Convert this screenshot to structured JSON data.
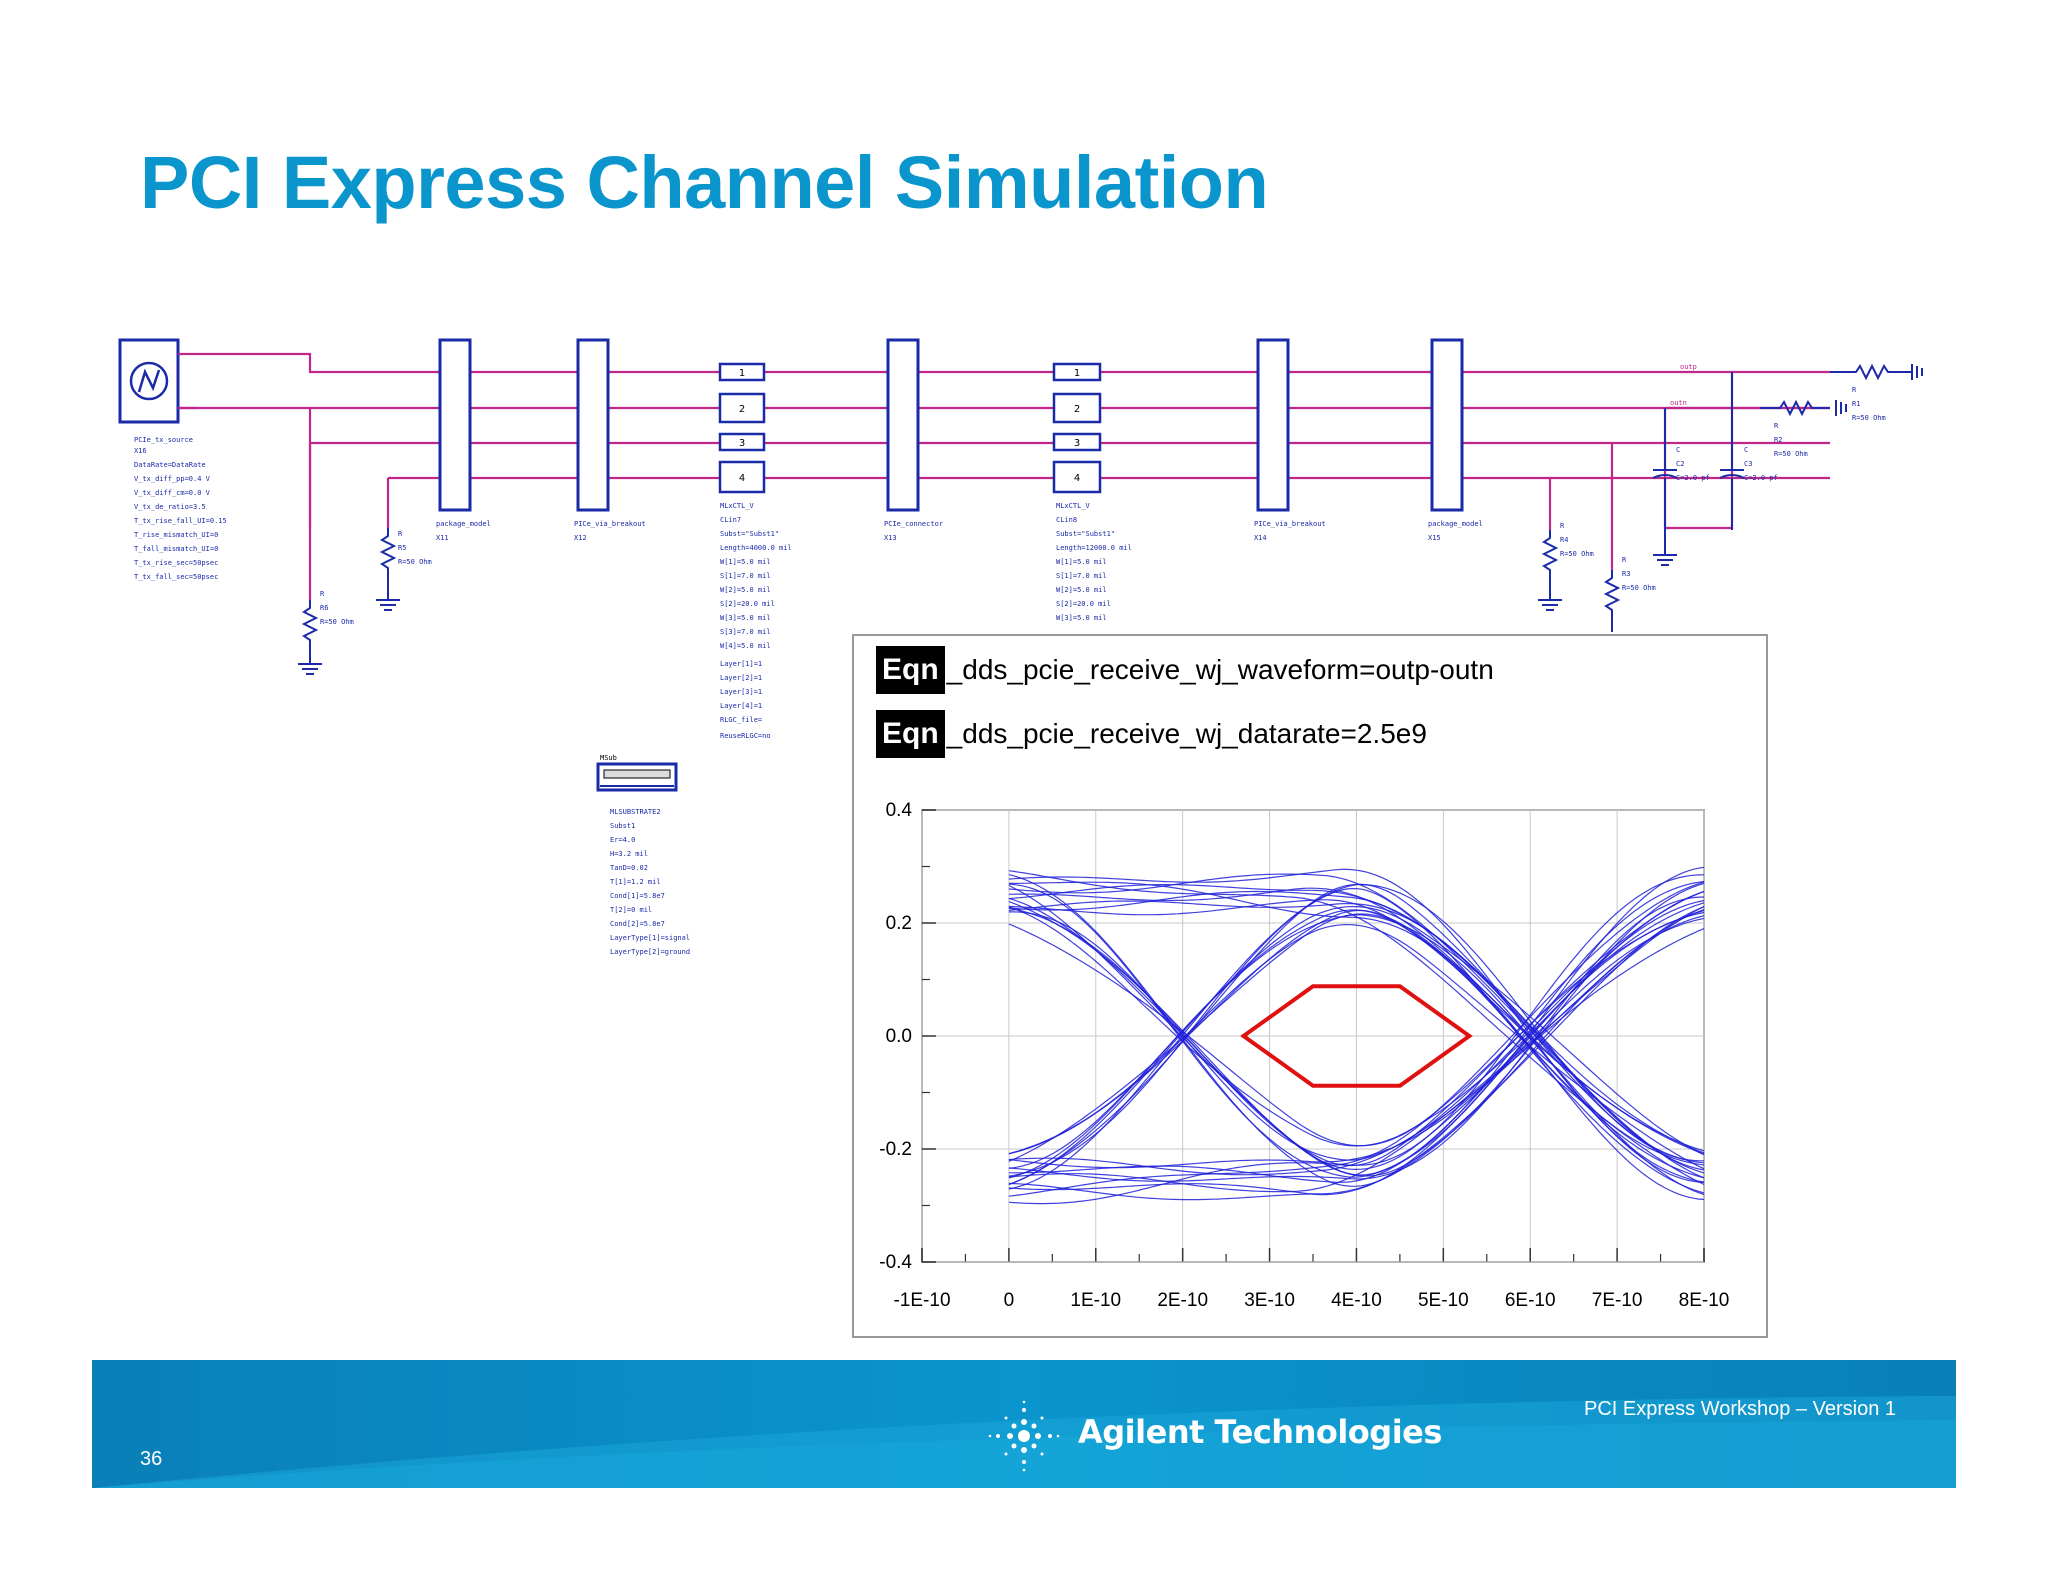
{
  "title": "PCI Express Channel Simulation",
  "footer": {
    "workshop": "PCI Express Workshop – Version 1",
    "page_number": "36",
    "logo": "Agilent Technologies"
  },
  "colors": {
    "title": "#0a96cc",
    "schematic_wire": "#c0278a",
    "schematic_component": "#1a2aa8",
    "eye_trace": "#1f1fd8",
    "mask": "#e01010",
    "footer": "#0a8fc8"
  },
  "schematic": {
    "source": {
      "name": "PCIe_tx_source",
      "id": "X16",
      "params": [
        "DataRate=DataRate",
        "V_tx_diff_pp=0.4 V",
        "V_tx_diff_cm=0.0 V",
        "V_tx_de_ratio=3.5",
        "T_tx_rise_fall_UI=0.15",
        "T_rise_mismatch_UI=0",
        "T_fall_mismatch_UI=0",
        "T_tx_rise_sec=50psec",
        "T_tx_fall_sec=50psec"
      ]
    },
    "blocks": [
      {
        "name": "package_model",
        "id": "X11"
      },
      {
        "name": "PICe_via_breakout",
        "id": "X12"
      },
      {
        "name": "PCIe_connector",
        "id": "X13"
      },
      {
        "name": "PICe_via_breakout",
        "id": "X14"
      },
      {
        "name": "package_model",
        "id": "X15"
      }
    ],
    "line1": {
      "name": "MLxCTL_V",
      "id": "CLin7",
      "ports": [
        "1",
        "2",
        "3",
        "4"
      ],
      "params": [
        "Subst=\"Subst1\"",
        "Length=4000.0 mil",
        "W[1]=5.0 mil",
        "S[1]=7.0 mil",
        "W[2]=5.0 mil",
        "S[2]=20.0 mil",
        "W[3]=5.0 mil",
        "S[3]=7.0 mil",
        "W[4]=5.0 mil",
        "Layer[1]=1",
        "Layer[2]=1",
        "Layer[3]=1",
        "Layer[4]=1",
        "RLGC_file=",
        "ReuseRLGC=no"
      ]
    },
    "line2": {
      "name": "MLxCTL_V",
      "id": "CLin8",
      "ports": [
        "1",
        "2",
        "3",
        "4"
      ],
      "params": [
        "Subst=\"Subst1\"",
        "Length=12000.0 mil",
        "W[1]=5.0 mil",
        "S[1]=7.0 mil",
        "W[2]=5.0 mil",
        "S[2]=20.0 mil",
        "W[3]=5.0 mil"
      ]
    },
    "resistors": [
      {
        "name": "R",
        "id": "R6",
        "value": "R=50 Ohm"
      },
      {
        "name": "R",
        "id": "R5",
        "value": "R=50 Ohm"
      },
      {
        "name": "R",
        "id": "R4",
        "value": "R=50 Ohm"
      },
      {
        "name": "R",
        "id": "R3",
        "value": "R=50 Ohm"
      },
      {
        "name": "R",
        "id": "R2",
        "value": "R=50 Ohm"
      },
      {
        "name": "R",
        "id": "R1",
        "value": "R=50 Ohm"
      }
    ],
    "capacitors": [
      {
        "name": "C",
        "id": "C2",
        "value": "C=2.0 pf"
      },
      {
        "name": "C",
        "id": "C3",
        "value": "C=2.0 pf"
      }
    ],
    "nets": [
      "outp",
      "outn"
    ],
    "substrate": {
      "header": "MSub",
      "name": "MLSUBSTRATE2",
      "params": [
        "Subst1",
        "Er=4.0",
        "H=3.2 mil",
        "TanD=0.02",
        "T[1]=1.2 mil",
        "Cond[1]=5.8e7",
        "T[2]=0 mil",
        "Cond[2]=5.8e7",
        "LayerType[1]=signal",
        "LayerType[2]=ground"
      ]
    }
  },
  "equations": [
    {
      "badge": "Eqn",
      "text": "_dds_pcie_receive_wj_waveform=outp-outn"
    },
    {
      "badge": "Eqn",
      "text": "_dds_pcie_receive_wj_datarate=2.5e9"
    }
  ],
  "chart_data": {
    "type": "line",
    "title": "",
    "xlabel": "",
    "ylabel": "",
    "xlim": [
      -1e-10,
      8e-10
    ],
    "ylim": [
      -0.4,
      0.4
    ],
    "x_ticks": [
      "-1E-10",
      "0",
      "1E-10",
      "2E-10",
      "3E-10",
      "4E-10",
      "5E-10",
      "6E-10",
      "7E-10",
      "8E-10"
    ],
    "y_ticks": [
      "0.4",
      "0.2",
      "0.0",
      "-0.2",
      "-0.4"
    ],
    "grid": true,
    "eye": {
      "unit_interval": 4e-10,
      "crossings": [
        2e-10,
        6e-10
      ],
      "high_levels": [
        0.22,
        0.225,
        0.232,
        0.24,
        0.25,
        0.26,
        0.27,
        0.28,
        0.29
      ],
      "low_levels": [
        -0.22,
        -0.225,
        -0.232,
        -0.24,
        -0.25,
        -0.26,
        -0.27,
        -0.28,
        -0.29
      ]
    },
    "mask": {
      "name": "eye mask",
      "points": [
        [
          2.7e-10,
          0.0
        ],
        [
          3.5e-10,
          0.088
        ],
        [
          4.5e-10,
          0.088
        ],
        [
          5.3e-10,
          0.0
        ],
        [
          4.5e-10,
          -0.088
        ],
        [
          3.5e-10,
          -0.088
        ]
      ]
    }
  }
}
